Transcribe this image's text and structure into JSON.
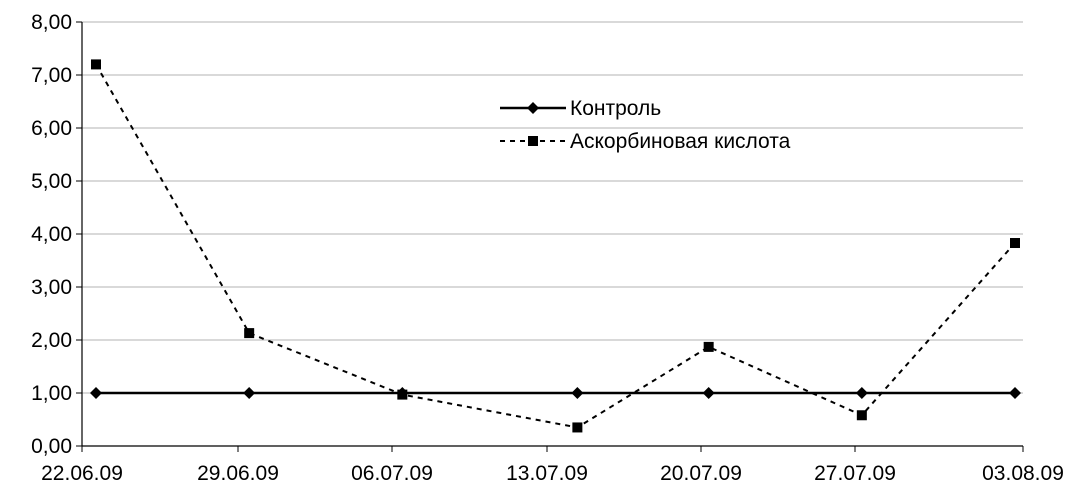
{
  "chart_data": {
    "type": "line",
    "title": "",
    "xlabel": "",
    "ylabel": "",
    "x_ticks": [
      "22.06.09",
      "29.06.09",
      "06.07.09",
      "13.07.09",
      "20.07.09",
      "27.07.09",
      "03.08.09"
    ],
    "y_ticks": [
      "0,00",
      "1,00",
      "2,00",
      "3,00",
      "4,00",
      "5,00",
      "6,00",
      "7,00",
      "8,00"
    ],
    "ylim": [
      0,
      8
    ],
    "xlim": [
      "2009-06-22",
      "2009-08-03"
    ],
    "grid": true,
    "legend_position": "top-right",
    "series": [
      {
        "name": "Контроль",
        "style": "solid",
        "marker": "diamond",
        "color": "#000000",
        "points": [
          {
            "x": "2009-06-22",
            "y": 1.0
          },
          {
            "x": "2009-06-29",
            "y": 1.0
          },
          {
            "x": "2009-07-06",
            "y": 1.0
          },
          {
            "x": "2009-07-14",
            "y": 1.0
          },
          {
            "x": "2009-07-20",
            "y": 1.0
          },
          {
            "x": "2009-07-27",
            "y": 1.0
          },
          {
            "x": "2009-08-03",
            "y": 1.0
          }
        ]
      },
      {
        "name": "Аскорбиновая кислота",
        "style": "dashed",
        "marker": "square",
        "color": "#000000",
        "points": [
          {
            "x": "2009-06-22",
            "y": 7.2
          },
          {
            "x": "2009-06-29",
            "y": 2.13
          },
          {
            "x": "2009-07-06",
            "y": 0.97
          },
          {
            "x": "2009-07-14",
            "y": 0.35
          },
          {
            "x": "2009-07-20",
            "y": 1.87
          },
          {
            "x": "2009-07-27",
            "y": 0.58
          },
          {
            "x": "2009-08-03",
            "y": 3.83
          }
        ]
      }
    ]
  }
}
